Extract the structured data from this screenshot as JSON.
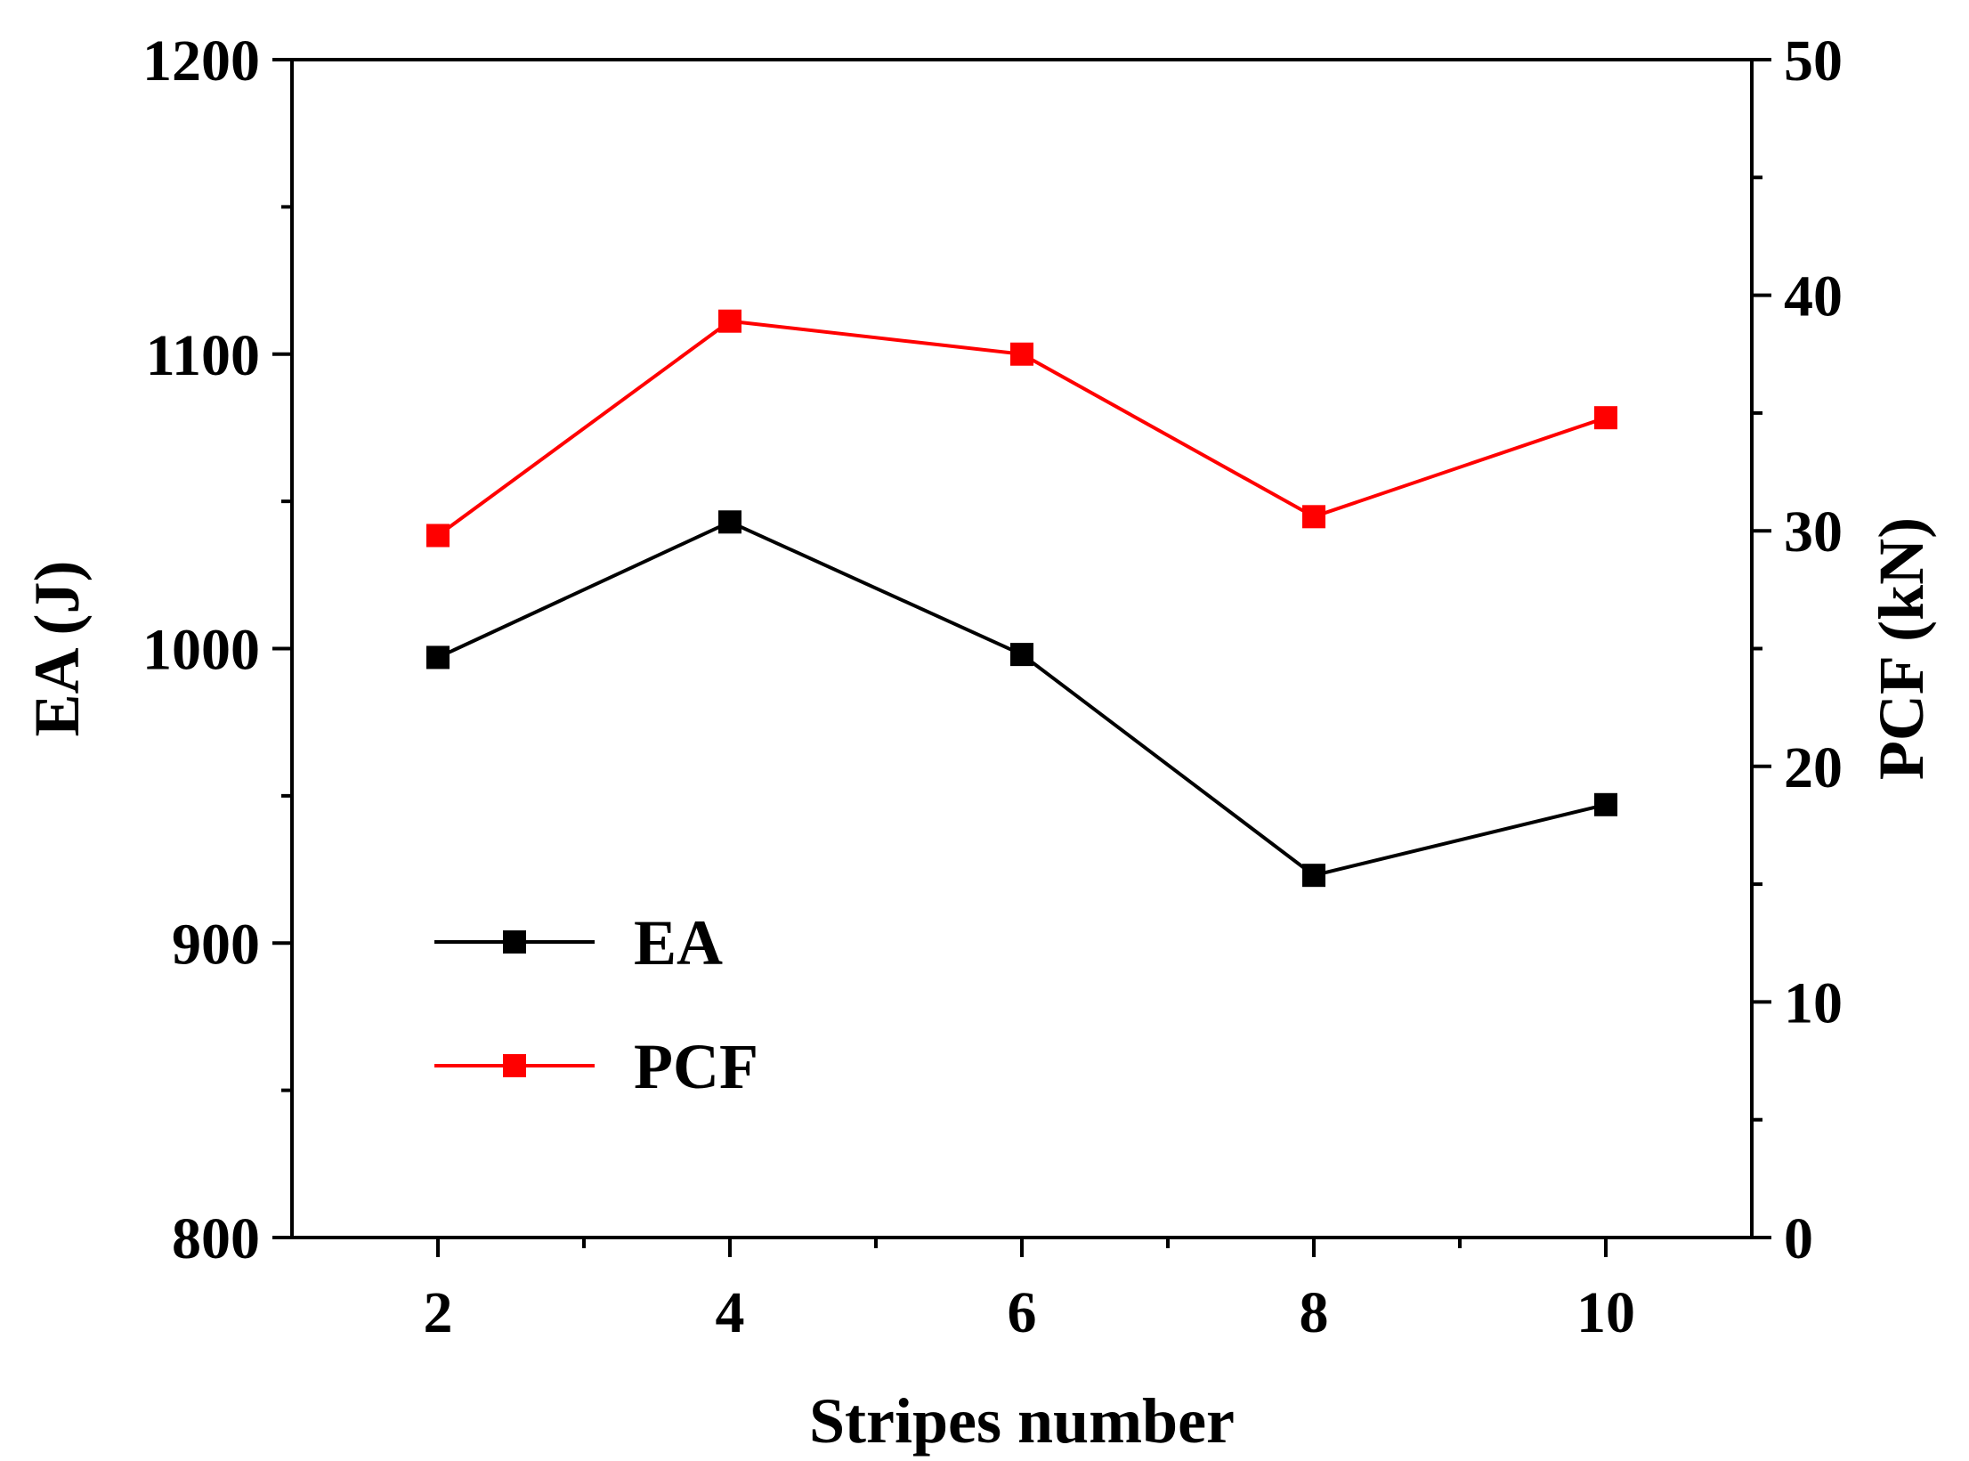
{
  "chart_data": {
    "type": "line",
    "title": "",
    "xlabel": "Stripes number",
    "ylabel_left": "EA (J)",
    "ylabel_right": "PCF (kN)",
    "x": [
      2,
      4,
      6,
      8,
      10
    ],
    "xlim": [
      1,
      11
    ],
    "x_ticks": [
      2,
      4,
      6,
      8,
      10
    ],
    "x_tick_labels": [
      "2",
      "4",
      "6",
      "8",
      "10"
    ],
    "ylim_left": [
      800,
      1200
    ],
    "y_ticks_left": [
      800,
      900,
      1000,
      1100,
      1200
    ],
    "y_tick_labels_left": [
      "800",
      "900",
      "1000",
      "1100",
      "1200"
    ],
    "ylim_right": [
      0,
      50
    ],
    "y_ticks_right": [
      0,
      10,
      20,
      30,
      40,
      50
    ],
    "y_tick_labels_right": [
      "0",
      "10",
      "20",
      "30",
      "40",
      "50"
    ],
    "grid": false,
    "legend_position": "bottom-left",
    "series": [
      {
        "name": "EA",
        "axis": "left",
        "color": "#000000",
        "marker": "square",
        "values": [
          997,
          1043,
          998,
          923,
          947
        ]
      },
      {
        "name": "PCF",
        "axis": "right",
        "color": "#ff0000",
        "marker": "square",
        "values": [
          29.8,
          38.9,
          37.5,
          30.6,
          34.8
        ]
      }
    ]
  }
}
